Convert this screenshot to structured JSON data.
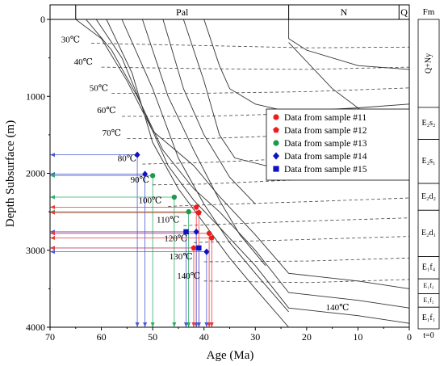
{
  "chart_data": {
    "type": "scatter",
    "xlabel": "Age (Ma)",
    "ylabel": "Depth Subsurface (m)",
    "xlim": [
      70,
      0
    ],
    "ylim": [
      0,
      4000
    ],
    "x_ticks": [
      70,
      60,
      50,
      40,
      30,
      20,
      10,
      0
    ],
    "y_ticks": [
      0,
      1000,
      2000,
      3000,
      4000
    ],
    "x_tick_labels": [
      "70",
      "60",
      "50",
      "40",
      "30",
      "20",
      "10",
      "0"
    ],
    "y_tick_labels": [
      "0",
      "1000",
      "2000",
      "3000",
      "4000"
    ],
    "grid": false,
    "legend_position": "center-right",
    "period_header": [
      {
        "label": "Pal",
        "from": 65,
        "to": 23.5
      },
      {
        "label": "N",
        "from": 23.5,
        "to": 2
      },
      {
        "label": "Q",
        "from": 2,
        "to": 0
      }
    ],
    "formation_title": "Fm",
    "formations": [
      {
        "label": "Q+Ny",
        "top": 0,
        "bottom": 1180
      },
      {
        "label": "E₂s₂",
        "top": 1180,
        "bottom": 1610
      },
      {
        "label": "E₂s₁",
        "top": 1610,
        "bottom": 2200
      },
      {
        "label": "E₂d₂",
        "top": 2200,
        "bottom": 2560
      },
      {
        "label": "E₂d₁",
        "top": 2560,
        "bottom": 3180
      },
      {
        "label": "E₁f₄",
        "top": 3180,
        "bottom": 3480
      },
      {
        "label": "E₁f₃",
        "top": 3480,
        "bottom": 3680
      },
      {
        "label": "E₁f₂",
        "top": 3680,
        "bottom": 3860
      },
      {
        "label": "E₁f₁",
        "top": 3860,
        "bottom": 4150
      }
    ],
    "time_zero_label": "t=0",
    "isotherms": [
      {
        "label": "30℃",
        "label_age": 66,
        "label_depth": 300,
        "points": [
          [
            62,
            310
          ],
          [
            40,
            340
          ],
          [
            20,
            370
          ],
          [
            0,
            360
          ]
        ]
      },
      {
        "label": "40℃",
        "label_age": 63.5,
        "label_depth": 590,
        "points": [
          [
            60,
            620
          ],
          [
            40,
            640
          ],
          [
            20,
            650
          ],
          [
            0,
            620
          ]
        ]
      },
      {
        "label": "50℃",
        "label_age": 60.5,
        "label_depth": 930,
        "points": [
          [
            58,
            960
          ],
          [
            40,
            960
          ],
          [
            20,
            940
          ],
          [
            0,
            890
          ]
        ]
      },
      {
        "label": "60℃",
        "label_age": 59,
        "label_depth": 1220,
        "points": [
          [
            56,
            1260
          ],
          [
            40,
            1260
          ],
          [
            20,
            1220
          ],
          [
            0,
            1180
          ]
        ]
      },
      {
        "label": "70℃",
        "label_age": 58,
        "label_depth": 1510,
        "points": [
          [
            55,
            1550
          ],
          [
            40,
            1550
          ],
          [
            20,
            1500
          ],
          [
            0,
            1450
          ]
        ]
      },
      {
        "label": "80℃",
        "label_age": 55,
        "label_depth": 1840,
        "points": [
          [
            52,
            1880
          ],
          [
            40,
            1860
          ],
          [
            20,
            1800
          ],
          [
            0,
            1760
          ]
        ]
      },
      {
        "label": "90℃",
        "label_age": 52.5,
        "label_depth": 2120,
        "points": [
          [
            50,
            2150
          ],
          [
            40,
            2140
          ],
          [
            20,
            2080
          ],
          [
            0,
            2050
          ]
        ]
      },
      {
        "label": "100℃",
        "label_age": 50.5,
        "label_depth": 2390,
        "points": [
          [
            47,
            2430
          ],
          [
            40,
            2410
          ],
          [
            20,
            2370
          ],
          [
            0,
            2320
          ]
        ]
      },
      {
        "label": "110℃",
        "label_age": 47,
        "label_depth": 2640,
        "points": [
          [
            44,
            2680
          ],
          [
            40,
            2670
          ],
          [
            20,
            2620
          ],
          [
            0,
            2580
          ]
        ]
      },
      {
        "label": "120℃",
        "label_age": 45.5,
        "label_depth": 2880,
        "points": [
          [
            42,
            2900
          ],
          [
            20,
            2860
          ],
          [
            0,
            2820
          ]
        ]
      },
      {
        "label": "130℃",
        "label_age": 44.5,
        "label_depth": 3120,
        "points": [
          [
            40,
            3150
          ],
          [
            20,
            3140
          ],
          [
            0,
            3100
          ]
        ]
      },
      {
        "label": "140℃",
        "label_age": 43,
        "label_depth": 3370,
        "points": [
          [
            40,
            3400
          ],
          [
            20,
            3420
          ],
          [
            0,
            3380
          ]
        ]
      },
      {
        "label": "140℃",
        "label_age": 14,
        "label_depth": 3780,
        "points": []
      }
    ],
    "burial_curves": [
      [
        [
          65,
          0
        ],
        [
          60,
          250
        ],
        [
          55,
          800
        ],
        [
          50,
          1450
        ],
        [
          42,
          1900
        ],
        [
          37,
          2300
        ],
        [
          30,
          2800
        ],
        [
          23.5,
          3300
        ],
        [
          10,
          3400
        ],
        [
          0,
          3500
        ]
      ],
      [
        [
          63,
          0
        ],
        [
          58,
          400
        ],
        [
          53,
          1000
        ],
        [
          48,
          1700
        ],
        [
          42,
          2200
        ],
        [
          37,
          2500
        ],
        [
          30,
          3000
        ],
        [
          23.5,
          3550
        ],
        [
          10,
          3650
        ],
        [
          0,
          3750
        ]
      ],
      [
        [
          61,
          0
        ],
        [
          56,
          500
        ],
        [
          51,
          1300
        ],
        [
          47,
          1900
        ],
        [
          42,
          2350
        ],
        [
          37,
          2700
        ],
        [
          30,
          3200
        ],
        [
          23.5,
          3750
        ],
        [
          10,
          3850
        ],
        [
          0,
          3950
        ]
      ],
      [
        [
          59,
          0
        ],
        [
          54,
          700
        ],
        [
          50,
          1600
        ],
        [
          45,
          2200
        ],
        [
          40,
          2650
        ],
        [
          35,
          3100
        ],
        [
          30,
          3500
        ],
        [
          23.5,
          4000
        ],
        [
          10,
          4000
        ],
        [
          0,
          4000
        ]
      ],
      [
        [
          56,
          0
        ],
        [
          50,
          900
        ],
        [
          45,
          1800
        ],
        [
          40,
          2400
        ],
        [
          35,
          2900
        ],
        [
          30,
          3300
        ],
        [
          23.5,
          3800
        ]
      ],
      [
        [
          52,
          0
        ],
        [
          47,
          1000
        ],
        [
          42,
          1700
        ],
        [
          37,
          2350
        ],
        [
          33,
          2800
        ],
        [
          28,
          3200
        ]
      ],
      [
        [
          48,
          0
        ],
        [
          44,
          900
        ],
        [
          40,
          1500
        ],
        [
          35,
          2050
        ],
        [
          30,
          2400
        ]
      ],
      [
        [
          44,
          0
        ],
        [
          40,
          800
        ],
        [
          37,
          1500
        ],
        [
          34,
          1800
        ],
        [
          28,
          1900
        ],
        [
          23.5,
          1800
        ],
        [
          10,
          1700
        ],
        [
          0,
          1650
        ]
      ],
      [
        [
          40,
          0
        ],
        [
          37,
          600
        ],
        [
          35,
          900
        ],
        [
          30,
          1100
        ],
        [
          23.5,
          1200
        ],
        [
          10,
          1150
        ],
        [
          0,
          1100
        ]
      ],
      [
        [
          23.5,
          0
        ],
        [
          23.5,
          250
        ],
        [
          20,
          400
        ],
        [
          10,
          600
        ],
        [
          0,
          650
        ]
      ],
      [
        [
          23.5,
          300
        ],
        [
          15,
          900
        ],
        [
          8,
          1250
        ],
        [
          0,
          1400
        ]
      ]
    ],
    "series": [
      {
        "name": "Data from sample #11",
        "marker": "circle",
        "color": "#ee1c1c",
        "points": [
          [
            39,
            2780
          ],
          [
            38.5,
            2840
          ]
        ]
      },
      {
        "name": "Data from sample #12",
        "marker": "pentagon",
        "color": "#ee1c1c",
        "points": [
          [
            41.5,
            2440
          ],
          [
            41,
            2510
          ],
          [
            42,
            2970
          ]
        ]
      },
      {
        "name": "Data from sample #13",
        "marker": "circle",
        "color": "#1a9a4a",
        "points": [
          [
            50,
            2030
          ],
          [
            45.8,
            2310
          ],
          [
            43,
            2500
          ]
        ]
      },
      {
        "name": "Data from sample #14",
        "marker": "diamond",
        "color": "#1010c8",
        "points": [
          [
            53,
            1760
          ],
          [
            51.5,
            2010
          ],
          [
            41.5,
            2760
          ],
          [
            39.5,
            3020
          ]
        ]
      },
      {
        "name": "Data from sample #15",
        "marker": "square",
        "color": "#1010c8",
        "points": [
          [
            43.5,
            2760
          ],
          [
            41,
            2970
          ]
        ]
      }
    ],
    "guide_lines": [
      {
        "color": "#4a5ad8",
        "age": 53,
        "depth": 1760
      },
      {
        "color": "#4a5ad8",
        "age": 51.5,
        "depth": 2010
      },
      {
        "color": "#2fae6a",
        "age": 50,
        "depth": 2030
      },
      {
        "color": "#2fae6a",
        "age": 45.8,
        "depth": 2310
      },
      {
        "color": "#ee3a3a",
        "age": 41.5,
        "depth": 2440
      },
      {
        "color": "#2fae6a",
        "age": 43,
        "depth": 2500
      },
      {
        "color": "#ee3a3a",
        "age": 41,
        "depth": 2510
      },
      {
        "color": "#4a5ad8",
        "age": 43.5,
        "depth": 2760
      },
      {
        "color": "#4a5ad8",
        "age": 41.5,
        "depth": 2760
      },
      {
        "color": "#ee3a3a",
        "age": 39,
        "depth": 2780
      },
      {
        "color": "#ee3a3a",
        "age": 38.5,
        "depth": 2840
      },
      {
        "color": "#4a5ad8",
        "age": 41,
        "depth": 2970
      },
      {
        "color": "#ee3a3a",
        "age": 42,
        "depth": 2970
      },
      {
        "color": "#4a5ad8",
        "age": 39.5,
        "depth": 3020
      }
    ]
  }
}
